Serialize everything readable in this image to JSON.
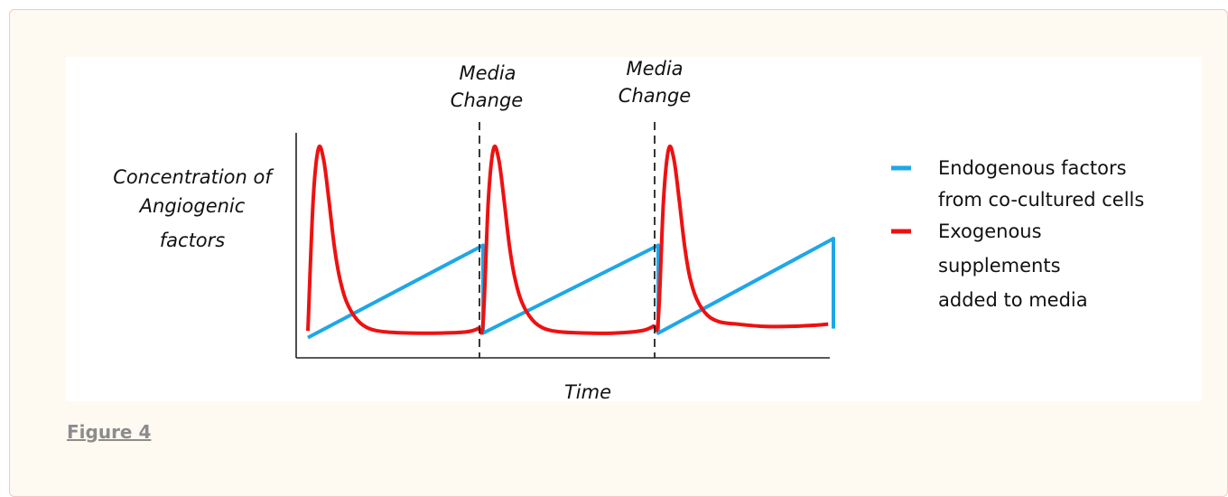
{
  "figure": {
    "caption_link": "Figure 4"
  },
  "chart_data": {
    "type": "line",
    "title": "",
    "xlabel": "Time",
    "ylabel_lines": [
      "Concentration of",
      "Angiogenic",
      "factors"
    ],
    "annotations": [
      {
        "label_lines": [
          "Media",
          "Change"
        ],
        "x": 1
      },
      {
        "label_lines": [
          "Media",
          "Change"
        ],
        "x": 2
      }
    ],
    "legend": {
      "placement": "right",
      "entries": [
        {
          "label_lines": [
            "Endogenous factors",
            "from co-cultured cells"
          ],
          "color": "#1ea7e8"
        },
        {
          "label_lines": [
            "Exogenous",
            "supplements",
            "added to media"
          ],
          "color": "#ee1111"
        }
      ]
    },
    "xlim": [
      0,
      3
    ],
    "ylim": [
      0,
      1
    ],
    "series": [
      {
        "role": "endogenous",
        "color": "#1ea7e8",
        "x": [
          0.0,
          1.0,
          1.0,
          2.0,
          2.0,
          3.0,
          3.0
        ],
        "y": [
          0.09,
          0.5,
          0.11,
          0.5,
          0.11,
          0.53,
          0.13
        ]
      },
      {
        "role": "exogenous",
        "color": "#ee1111",
        "x": [
          0.0,
          0.03,
          0.06,
          0.09,
          0.12,
          0.15,
          0.18,
          0.22,
          0.28,
          0.35,
          0.45,
          0.6,
          0.75,
          0.9,
          0.97,
          1.0,
          1.03,
          1.06,
          1.09,
          1.12,
          1.15,
          1.18,
          1.22,
          1.28,
          1.35,
          1.45,
          1.6,
          1.75,
          1.9,
          1.97,
          2.0,
          2.03,
          2.06,
          2.09,
          2.12,
          2.15,
          2.18,
          2.22,
          2.28,
          2.35,
          2.45,
          2.6,
          2.75,
          2.9,
          2.97
        ],
        "y": [
          0.12,
          0.7,
          0.93,
          0.88,
          0.7,
          0.5,
          0.36,
          0.25,
          0.17,
          0.13,
          0.115,
          0.11,
          0.11,
          0.115,
          0.13,
          0.16,
          0.7,
          0.93,
          0.88,
          0.7,
          0.5,
          0.36,
          0.25,
          0.17,
          0.13,
          0.115,
          0.11,
          0.11,
          0.12,
          0.14,
          0.17,
          0.7,
          0.93,
          0.88,
          0.7,
          0.5,
          0.36,
          0.26,
          0.19,
          0.16,
          0.15,
          0.14,
          0.14,
          0.145,
          0.15
        ]
      }
    ]
  }
}
